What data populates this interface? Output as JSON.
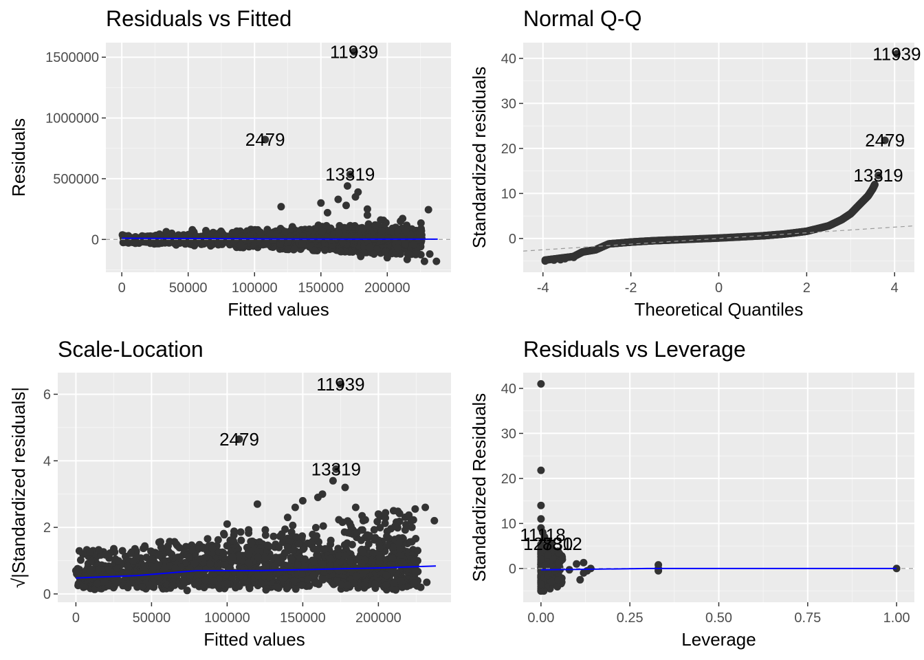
{
  "chart_data": [
    {
      "id": "rvf",
      "type": "scatter",
      "title": "Residuals vs Fitted",
      "xlabel": "Fitted values",
      "ylabel": "Residuals",
      "xlim": [
        -12000,
        248000
      ],
      "ylim": [
        -270000,
        1620000
      ],
      "x_ticks": [
        0,
        50000,
        100000,
        150000,
        200000
      ],
      "x_tick_labels": [
        "0",
        "50000",
        "100000",
        "150000",
        "200000"
      ],
      "y_ticks": [
        0,
        500000,
        1000000,
        1500000
      ],
      "y_tick_labels": [
        "0",
        "500000",
        "1000000",
        "1500000"
      ],
      "grid": true,
      "reference_line": {
        "type": "horizontal",
        "y": 0,
        "style": "dashed",
        "color": "#999999"
      },
      "smooth_line": {
        "color": "#0000ff",
        "x": [
          0,
          50000,
          100000,
          150000,
          200000,
          238000
        ],
        "y": [
          10000,
          8000,
          5000,
          3000,
          2000,
          2000
        ]
      },
      "cloud": {
        "model": "fan",
        "x_range": [
          0,
          238000
        ],
        "spread_at_min": 30000,
        "spread_at_max": 140000
      },
      "points": {
        "x": [
          175000,
          108000,
          172000,
          170000,
          178000,
          163000,
          150000,
          120000,
          185000,
          210000,
          231000,
          237000,
          228000,
          232000,
          215000,
          200000,
          190000,
          180000,
          165000,
          145000,
          130000,
          90000,
          60000,
          30000,
          10000,
          5000,
          176000,
          169000,
          155000,
          185000,
          195000
        ],
        "y": [
          1545000,
          822000,
          535000,
          440000,
          390000,
          330000,
          300000,
          270000,
          250000,
          150000,
          245000,
          -180000,
          -180000,
          -120000,
          -165000,
          -150000,
          -120000,
          -140000,
          -100000,
          -90000,
          -80000,
          -60000,
          -40000,
          -30000,
          0,
          30000,
          350000,
          280000,
          220000,
          200000,
          160000
        ]
      },
      "point_labels": [
        {
          "text": "11939",
          "x": 175000,
          "y": 1545000
        },
        {
          "text": "2479",
          "x": 108000,
          "y": 822000
        },
        {
          "text": "13319",
          "x": 172000,
          "y": 535000
        }
      ]
    },
    {
      "id": "qq",
      "type": "scatter",
      "title": "Normal Q-Q",
      "xlabel": "Theoretical Quantiles",
      "ylabel": "Standardized residuals",
      "xlim": [
        -4.45,
        4.45
      ],
      "ylim": [
        -7.5,
        43.5
      ],
      "x_ticks": [
        -4,
        -2,
        0,
        2,
        4
      ],
      "x_tick_labels": [
        "-4",
        "-2",
        "0",
        "2",
        "4"
      ],
      "y_ticks": [
        0,
        10,
        20,
        30,
        40
      ],
      "y_tick_labels": [
        "0",
        "10",
        "20",
        "30",
        "40"
      ],
      "grid": true,
      "reference_line": {
        "type": "line",
        "x": [
          -4.45,
          4.45
        ],
        "y": [
          -2.8,
          2.8
        ],
        "style": "dashed",
        "color": "#999999"
      },
      "curve": {
        "x": [
          -3.95,
          -3.3,
          -3.1,
          -2.8,
          -2.5,
          -2.0,
          -1.5,
          -1.0,
          0.0,
          1.0,
          1.5,
          2.0,
          2.5,
          2.8,
          3.0,
          3.2,
          3.3,
          3.4,
          3.5,
          3.55
        ],
        "y": [
          -4.8,
          -4.0,
          -3.0,
          -2.5,
          -1.2,
          -0.8,
          -0.5,
          -0.3,
          0.1,
          0.6,
          1.0,
          1.6,
          2.8,
          4.2,
          5.5,
          7.5,
          8.5,
          9.5,
          11.0,
          12.0
        ]
      },
      "points": {
        "x": [
          4.05,
          3.78,
          3.63,
          -3.95,
          -3.75,
          -3.6,
          -3.5,
          -3.3
        ],
        "y": [
          41.0,
          21.8,
          14.0,
          -5.0,
          -4.8,
          -4.7,
          -4.5,
          -4.2
        ]
      },
      "point_labels": [
        {
          "text": "11939",
          "x": 4.05,
          "y": 41.0
        },
        {
          "text": "2479",
          "x": 3.78,
          "y": 21.8
        },
        {
          "text": "13319",
          "x": 3.63,
          "y": 14.0
        }
      ]
    },
    {
      "id": "sl",
      "type": "scatter",
      "title": "Scale-Location",
      "xlabel": "Fitted values",
      "ylabel": "√|Standardized residuals|",
      "xlim": [
        -12000,
        248000
      ],
      "ylim": [
        -0.25,
        6.65
      ],
      "x_ticks": [
        0,
        50000,
        100000,
        150000,
        200000
      ],
      "x_tick_labels": [
        "0",
        "50000",
        "100000",
        "150000",
        "200000"
      ],
      "y_ticks": [
        0,
        2,
        4,
        6
      ],
      "y_tick_labels": [
        "0",
        "2",
        "4",
        "6"
      ],
      "grid": true,
      "smooth_line": {
        "color": "#0000ff",
        "x": [
          0,
          40000,
          80000,
          120000,
          160000,
          200000,
          238000
        ],
        "y": [
          0.48,
          0.55,
          0.7,
          0.7,
          0.74,
          0.78,
          0.84
        ]
      },
      "cloud": {
        "model": "band",
        "x_range": [
          0,
          238000
        ],
        "y_base": 0.1,
        "height_at_min": 1.2,
        "height_at_max": 2.5
      },
      "points": {
        "x": [
          175000,
          108000,
          172000,
          170000,
          178000,
          163000,
          150000,
          120000,
          185000,
          210000,
          231000,
          237000,
          228000,
          232000,
          215000,
          0,
          5000,
          200000,
          190000,
          145000,
          160000,
          140000,
          100000
        ],
        "y": [
          6.3,
          4.65,
          3.75,
          3.4,
          3.2,
          3.0,
          2.8,
          2.7,
          2.6,
          2.5,
          2.6,
          2.2,
          0.2,
          0.35,
          0.4,
          0.7,
          0.2,
          2.4,
          2.2,
          2.6,
          2.9,
          2.3,
          2.1
        ]
      },
      "point_labels": [
        {
          "text": "11939",
          "x": 175000,
          "y": 6.3
        },
        {
          "text": "2479",
          "x": 108000,
          "y": 4.65
        },
        {
          "text": "13319",
          "x": 172000,
          "y": 3.75
        }
      ]
    },
    {
      "id": "rvl",
      "type": "scatter",
      "title": "Residuals vs Leverage",
      "xlabel": "Leverage",
      "ylabel": "Standardized Residuals",
      "xlim": [
        -0.05,
        1.05
      ],
      "ylim": [
        -7.5,
        43.5
      ],
      "x_ticks": [
        0,
        0.25,
        0.5,
        0.75,
        1.0
      ],
      "x_tick_labels": [
        "0.00",
        "0.25",
        "0.50",
        "0.75",
        "1.00"
      ],
      "y_ticks": [
        0,
        10,
        20,
        30,
        40
      ],
      "y_tick_labels": [
        "0",
        "10",
        "20",
        "30",
        "40"
      ],
      "grid": true,
      "reference_line": {
        "type": "horizontal",
        "y": 0,
        "style": "dashed",
        "color": "#999999"
      },
      "smooth_line": {
        "color": "#0000ff",
        "x": [
          0,
          0.1,
          0.3,
          0.6,
          1.0
        ],
        "y": [
          -0.3,
          -0.2,
          0.0,
          0.0,
          0.0
        ]
      },
      "points": {
        "x": [
          0.0,
          0.0,
          0.0,
          0.0,
          0.0,
          0.005,
          0.01,
          0.02,
          0.03,
          0.05,
          0.06,
          0.1,
          0.12,
          0.13,
          0.14,
          0.33,
          0.33,
          0.33,
          1.0,
          0.0,
          0.0,
          0.005,
          0.01,
          0.02,
          0.03,
          0.04,
          0.08,
          0.11,
          0.12,
          0.015,
          0.02,
          0.0,
          0.0
        ],
        "y": [
          41.0,
          21.8,
          14.0,
          11.0,
          9.0,
          8.0,
          7.0,
          6.0,
          5.5,
          3.5,
          2.0,
          1.0,
          1.3,
          -0.5,
          0.0,
          0.8,
          0.0,
          -0.5,
          0.0,
          -4.0,
          -5.0,
          -3.0,
          -2.0,
          -1.5,
          -1.0,
          -0.5,
          -0.3,
          -2.5,
          -1.0,
          4.5,
          3.0,
          2.0,
          -3.5
        ]
      },
      "point_labels": [
        {
          "text": "11118",
          "x": 0.005,
          "y": 7.5
        },
        {
          "text": "12730",
          "x": 0.02,
          "y": 5.5
        },
        {
          "text": "8812",
          "x": 0.06,
          "y": 5.5
        }
      ]
    }
  ]
}
